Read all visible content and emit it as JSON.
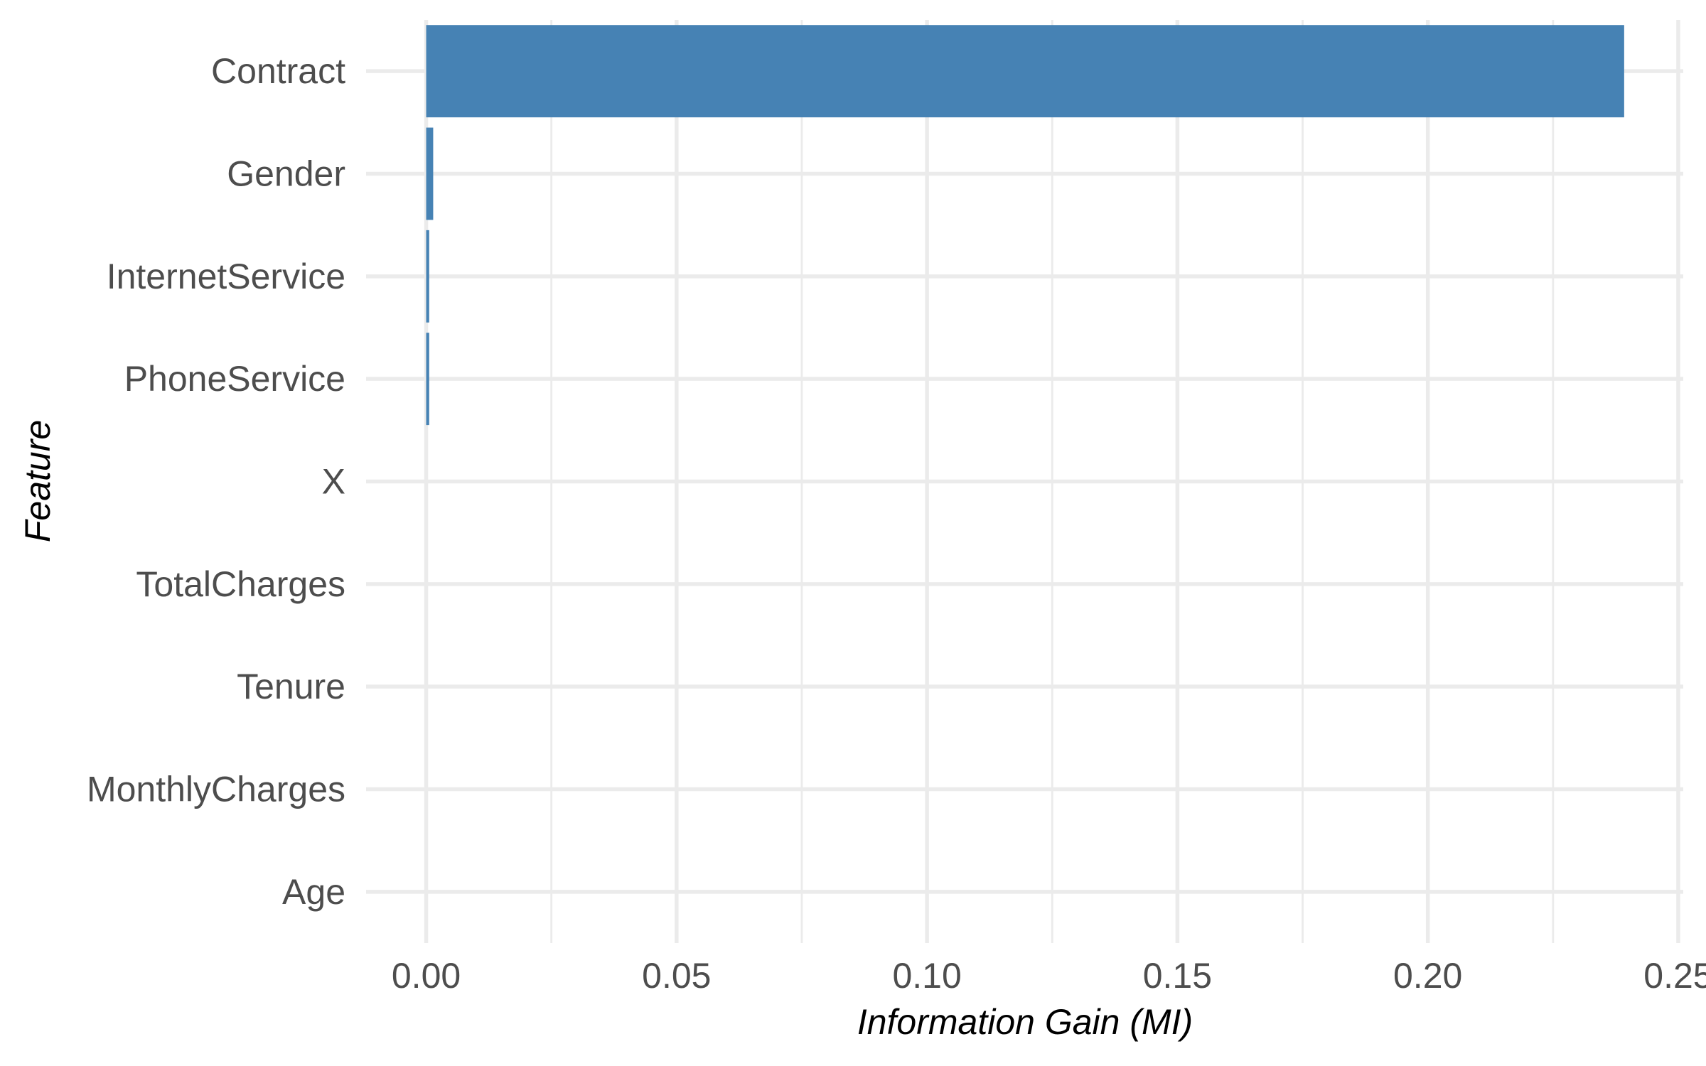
{
  "chart_data": {
    "type": "bar",
    "orientation": "horizontal",
    "title": "",
    "xlabel": "Information Gain (MI)",
    "ylabel": "Feature",
    "categories": [
      "Contract",
      "Gender",
      "InternetService",
      "PhoneService",
      "X",
      "TotalCharges",
      "Tenure",
      "MonthlyCharges",
      "Age"
    ],
    "values": [
      0.2392,
      0.0014,
      0.0006,
      0.0006,
      0,
      0,
      0,
      0,
      0
    ],
    "xlim": [
      -0.012,
      0.251
    ],
    "x_ticks": [
      0.0,
      0.05,
      0.1,
      0.15,
      0.2,
      0.25
    ],
    "x_tick_labels": [
      "0.00",
      "0.05",
      "0.10",
      "0.15",
      "0.20",
      "0.25"
    ],
    "grid": true,
    "legend": "none",
    "bar_color": "#4682B4"
  }
}
